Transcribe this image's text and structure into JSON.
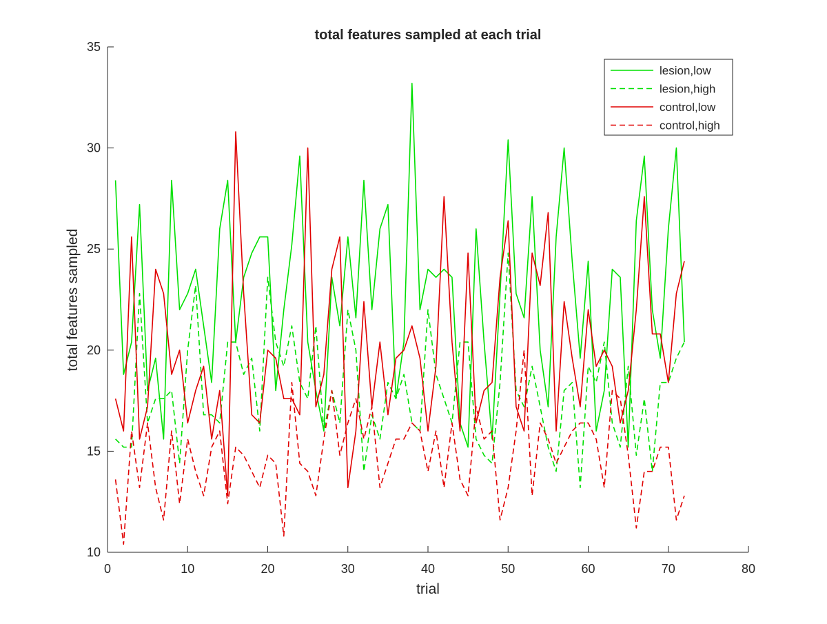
{
  "chart_data": {
    "type": "line",
    "title": "total features sampled at each trial",
    "xlabel": "trial",
    "ylabel": "total features sampled",
    "xlim": [
      0,
      80
    ],
    "ylim": [
      10,
      35
    ],
    "xticks": [
      0,
      10,
      20,
      30,
      40,
      50,
      60,
      70,
      80
    ],
    "yticks": [
      10,
      15,
      20,
      25,
      30,
      35
    ],
    "grid": false,
    "legend_position": "top-right",
    "x": [
      1,
      2,
      3,
      4,
      5,
      6,
      7,
      8,
      9,
      10,
      11,
      12,
      13,
      14,
      15,
      16,
      17,
      18,
      19,
      20,
      21,
      22,
      23,
      24,
      25,
      26,
      27,
      28,
      29,
      30,
      31,
      32,
      33,
      34,
      35,
      36,
      37,
      38,
      39,
      40,
      41,
      42,
      43,
      44,
      45,
      46,
      47,
      48,
      49,
      50,
      51,
      52,
      53,
      54,
      55,
      56,
      57,
      58,
      59,
      60,
      61,
      62,
      63,
      64,
      65,
      66,
      67,
      68,
      69,
      70,
      71,
      72
    ],
    "series": [
      {
        "name": "lesion,low",
        "color": "#00e000",
        "dash": "solid",
        "values": [
          28.4,
          18.8,
          20.4,
          27.2,
          18.0,
          19.6,
          15.6,
          28.4,
          22.0,
          22.8,
          24.0,
          21.2,
          18.4,
          26.0,
          28.4,
          20.4,
          23.6,
          24.8,
          25.6,
          25.6,
          18.0,
          22.0,
          25.2,
          29.6,
          20.4,
          18.0,
          16.0,
          23.6,
          21.2,
          25.6,
          21.6,
          28.4,
          22.0,
          26.0,
          27.2,
          17.6,
          20.4,
          33.2,
          22.0,
          24.0,
          23.6,
          24.0,
          23.6,
          16.4,
          15.2,
          26.0,
          20.4,
          15.6,
          22.8,
          30.4,
          22.8,
          21.6,
          27.6,
          20.0,
          17.2,
          25.6,
          30.0,
          24.4,
          19.6,
          24.4,
          16.0,
          18.0,
          24.0,
          23.6,
          15.2,
          26.4,
          29.6,
          22.0,
          19.6,
          26.0,
          30.0,
          20.4
        ]
      },
      {
        "name": "lesion,high",
        "color": "#00e000",
        "dash": "dashed",
        "values": [
          15.6,
          15.2,
          15.2,
          22.8,
          16.4,
          17.6,
          17.6,
          18.0,
          14.4,
          20.0,
          23.2,
          16.8,
          16.8,
          16.4,
          20.4,
          20.4,
          18.8,
          19.6,
          16.0,
          23.6,
          20.4,
          19.2,
          21.2,
          18.4,
          17.6,
          21.2,
          16.0,
          18.0,
          16.4,
          22.0,
          20.0,
          14.0,
          16.8,
          15.6,
          18.4,
          17.6,
          18.8,
          16.4,
          16.0,
          22.0,
          18.8,
          17.6,
          16.4,
          20.4,
          20.4,
          15.6,
          14.8,
          14.4,
          18.4,
          24.8,
          18.0,
          17.2,
          19.2,
          17.2,
          15.2,
          14.0,
          18.0,
          18.4,
          13.2,
          19.2,
          18.4,
          20.4,
          16.4,
          15.2,
          19.2,
          14.8,
          17.6,
          14.0,
          18.4,
          18.4,
          19.6,
          20.4
        ]
      },
      {
        "name": "control,low",
        "color": "#e00000",
        "dash": "solid",
        "values": [
          17.6,
          16.0,
          25.6,
          15.6,
          17.2,
          24.0,
          22.8,
          18.8,
          20.0,
          16.4,
          18.0,
          19.2,
          15.6,
          18.0,
          12.8,
          30.8,
          22.8,
          16.8,
          16.4,
          20.0,
          19.6,
          17.6,
          17.6,
          16.8,
          30.0,
          17.2,
          18.8,
          24.0,
          25.6,
          13.2,
          16.0,
          22.4,
          17.2,
          20.4,
          16.8,
          19.6,
          20.0,
          21.2,
          19.6,
          16.0,
          19.2,
          27.6,
          20.4,
          16.0,
          24.8,
          16.4,
          18.0,
          18.4,
          23.6,
          26.4,
          17.2,
          16.0,
          24.8,
          23.2,
          26.8,
          16.0,
          22.4,
          19.6,
          17.2,
          22.0,
          19.2,
          20.0,
          19.2,
          16.4,
          18.0,
          22.0,
          27.6,
          20.8,
          20.8,
          18.4,
          22.8,
          24.4
        ]
      },
      {
        "name": "control,high",
        "color": "#e00000",
        "dash": "dashed",
        "values": [
          13.6,
          10.4,
          16.0,
          13.2,
          16.4,
          13.2,
          11.6,
          16.0,
          12.4,
          15.6,
          14.0,
          12.8,
          15.2,
          16.0,
          12.4,
          15.2,
          14.8,
          14.0,
          13.2,
          14.8,
          14.4,
          10.8,
          18.4,
          14.4,
          14.0,
          12.8,
          15.6,
          18.0,
          14.8,
          16.4,
          17.6,
          15.6,
          17.2,
          13.2,
          14.4,
          15.6,
          15.6,
          16.4,
          16.0,
          14.0,
          16.0,
          13.2,
          16.4,
          13.6,
          12.8,
          17.2,
          15.6,
          16.0,
          11.6,
          13.2,
          16.0,
          20.0,
          12.8,
          16.4,
          15.6,
          14.4,
          15.2,
          16.0,
          16.4,
          16.4,
          15.6,
          13.2,
          18.0,
          17.6,
          14.8,
          11.2,
          14.0,
          14.0,
          15.2,
          15.2,
          11.6,
          12.8
        ]
      }
    ]
  }
}
